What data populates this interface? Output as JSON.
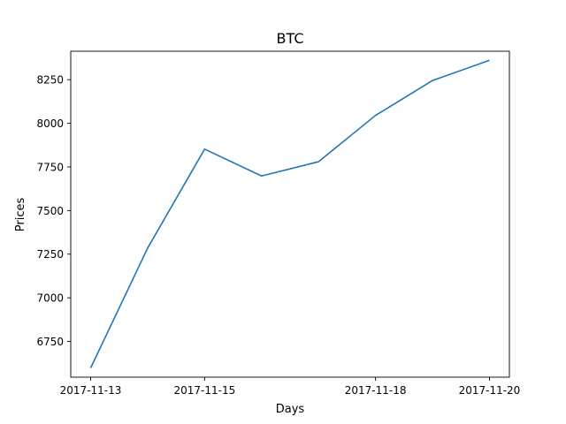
{
  "chart_data": {
    "type": "line",
    "title": "BTC",
    "xlabel": "Days",
    "ylabel": "Prices",
    "x": [
      "2017-11-13",
      "2017-11-14",
      "2017-11-15",
      "2017-11-16",
      "2017-11-17",
      "2017-11-18",
      "2017-11-19",
      "2017-11-20"
    ],
    "series": [
      {
        "values": [
          6598,
          7285,
          7852,
          7698,
          7780,
          8045,
          8245,
          8361
        ],
        "color": "#1f77b4"
      }
    ],
    "xticks": [
      "2017-11-13",
      "2017-11-15",
      "2017-11-18",
      "2017-11-20"
    ],
    "yticks": [
      6750,
      7000,
      7250,
      7500,
      7750,
      8000,
      8250
    ],
    "ylim": [
      6545,
      8413
    ],
    "grid": false
  }
}
